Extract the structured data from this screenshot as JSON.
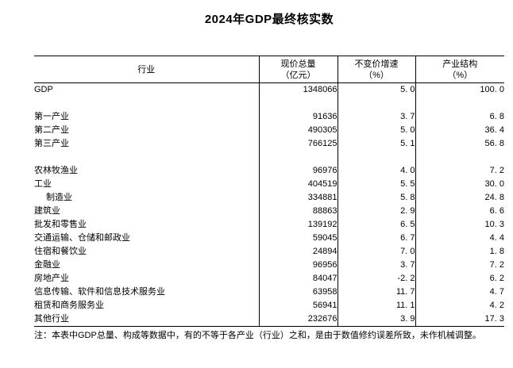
{
  "title": "2024年GDP最终核实数",
  "table": {
    "headers": {
      "industry": "行业",
      "current_total_l1": "现价总量",
      "current_total_l2": "（亿元）",
      "growth_l1": "不变价增速",
      "growth_l2": "（%）",
      "structure_l1": "产业结构",
      "structure_l2": "（%）"
    },
    "rows": [
      {
        "industry": "GDP",
        "indent": false,
        "current_total": "1348066",
        "growth": "5. 0",
        "structure": "100. 0"
      },
      {
        "industry": "",
        "indent": false,
        "current_total": "",
        "growth": "",
        "structure": ""
      },
      {
        "industry": "第一产业",
        "indent": false,
        "current_total": "91636",
        "growth": "3. 7",
        "structure": "6. 8"
      },
      {
        "industry": "第二产业",
        "indent": false,
        "current_total": "490305",
        "growth": "5. 0",
        "structure": "36. 4"
      },
      {
        "industry": "第三产业",
        "indent": false,
        "current_total": "766125",
        "growth": "5. 1",
        "structure": "56. 8"
      },
      {
        "industry": "",
        "indent": false,
        "current_total": "",
        "growth": "",
        "structure": ""
      },
      {
        "industry": "农林牧渔业",
        "indent": false,
        "current_total": "96976",
        "growth": "4. 0",
        "structure": "7. 2"
      },
      {
        "industry": "工业",
        "indent": false,
        "current_total": "404519",
        "growth": "5. 5",
        "structure": "30. 0"
      },
      {
        "industry": "制造业",
        "indent": true,
        "current_total": "334881",
        "growth": "5. 8",
        "structure": "24. 8"
      },
      {
        "industry": "建筑业",
        "indent": false,
        "current_total": "88863",
        "growth": "2. 9",
        "structure": "6. 6"
      },
      {
        "industry": "批发和零售业",
        "indent": false,
        "current_total": "139192",
        "growth": "6. 5",
        "structure": "10. 3"
      },
      {
        "industry": "交通运输、仓储和邮政业",
        "indent": false,
        "current_total": "59045",
        "growth": "6. 7",
        "structure": "4. 4"
      },
      {
        "industry": "住宿和餐饮业",
        "indent": false,
        "current_total": "24894",
        "growth": "7. 0",
        "structure": "1. 8"
      },
      {
        "industry": "金融业",
        "indent": false,
        "current_total": "96956",
        "growth": "3. 7",
        "structure": "7. 2"
      },
      {
        "industry": "房地产业",
        "indent": false,
        "current_total": "84047",
        "growth": "-2. 2",
        "structure": "6. 2"
      },
      {
        "industry": "信息传输、软件和信息技术服务业",
        "indent": false,
        "current_total": "63958",
        "growth": "11. 7",
        "structure": "4. 7"
      },
      {
        "industry": "租赁和商务服务业",
        "indent": false,
        "current_total": "56941",
        "growth": "11. 1",
        "structure": "4. 2"
      },
      {
        "industry": "其他行业",
        "indent": false,
        "current_total": "232676",
        "growth": "3. 9",
        "structure": "17. 3"
      }
    ]
  },
  "note": "注：本表中GDP总量、构成等数据中，有的不等于各产业（行业）之和，是由于数值修约误差所致，未作机械调整。",
  "colors": {
    "text": "#000000",
    "border": "#000000",
    "background": "#ffffff"
  }
}
